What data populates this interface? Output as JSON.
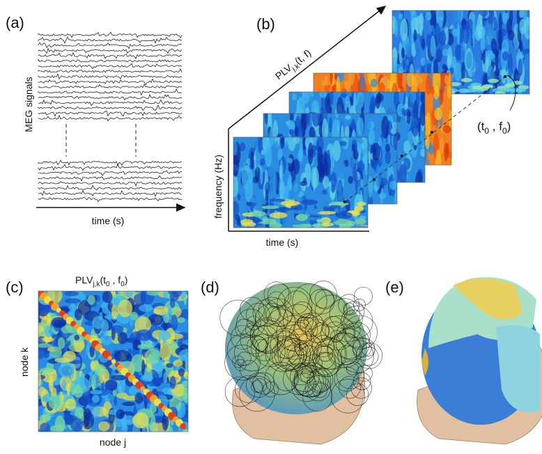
{
  "panel_a": {
    "label": "(a)",
    "y_label": "MEG signals",
    "x_label": "time (s)"
  },
  "panel_b": {
    "label": "(b)",
    "diagonal_label": {
      "base": "PLV",
      "sub": "j,k",
      "args": "(t, f)"
    },
    "y_label": "frequency (Hz)",
    "x_label": "time (s)",
    "point_label": {
      "open": "(t",
      "sub1": "0",
      "mid": " , f",
      "sub2": "0",
      "close": ")"
    }
  },
  "panel_c": {
    "label": "(c)",
    "title": {
      "base": "PLV",
      "sub": "j,k",
      "open": "(t",
      "sub1": "0",
      "mid": " , f",
      "sub2": "0",
      "close": ")"
    },
    "y_label": "node k",
    "x_label": "node j"
  },
  "panel_d": {
    "label": "(d)"
  },
  "panel_e": {
    "label": "(e)"
  }
}
